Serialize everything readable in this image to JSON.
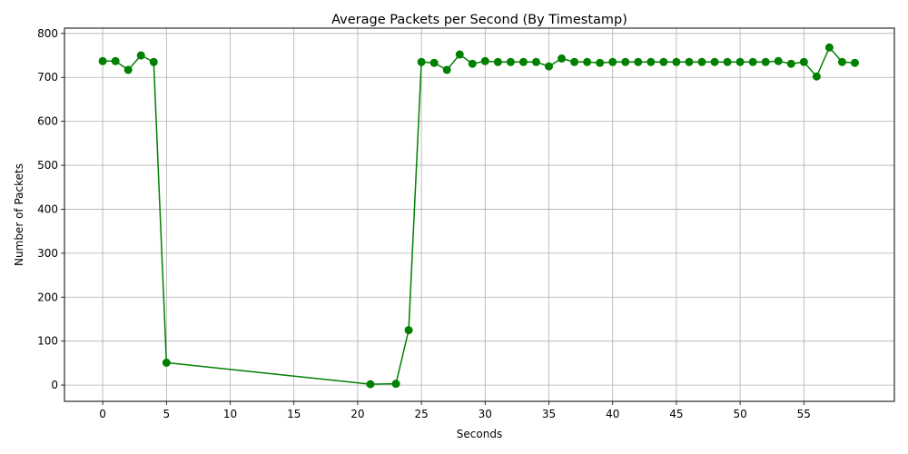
{
  "chart_data": {
    "type": "line",
    "title": "Average Packets per Second (By Timestamp)",
    "xlabel": "Seconds",
    "ylabel": "Number of Packets",
    "xlim": [
      -3.0,
      62.1
    ],
    "ylim": [
      -37,
      812
    ],
    "xticks": [
      0,
      5,
      10,
      15,
      20,
      25,
      30,
      35,
      40,
      45,
      50,
      55
    ],
    "yticks": [
      0,
      100,
      200,
      300,
      400,
      500,
      600,
      700,
      800
    ],
    "grid": true,
    "colors": {
      "series": "#008000",
      "grid": "#b0b0b0",
      "axes": "#000000"
    },
    "series": [
      {
        "marker": "circle",
        "x": [
          0,
          1,
          2,
          3,
          4,
          5,
          21,
          23,
          24,
          25,
          26,
          27,
          28,
          29,
          30,
          31,
          32,
          33,
          34,
          35,
          36,
          37,
          38,
          39,
          40,
          41,
          42,
          43,
          44,
          45,
          46,
          47,
          48,
          49,
          50,
          51,
          52,
          53,
          54,
          55,
          56,
          57,
          58,
          59
        ],
        "y": [
          737,
          737,
          717,
          750,
          735,
          51,
          2,
          3,
          125,
          735,
          733,
          717,
          752,
          731,
          737,
          735,
          735,
          735,
          735,
          725,
          743,
          735,
          735,
          733,
          735,
          735,
          735,
          735,
          735,
          735,
          735,
          735,
          735,
          735,
          735,
          735,
          735,
          737,
          731,
          735,
          702,
          768,
          735,
          733
        ]
      }
    ]
  }
}
